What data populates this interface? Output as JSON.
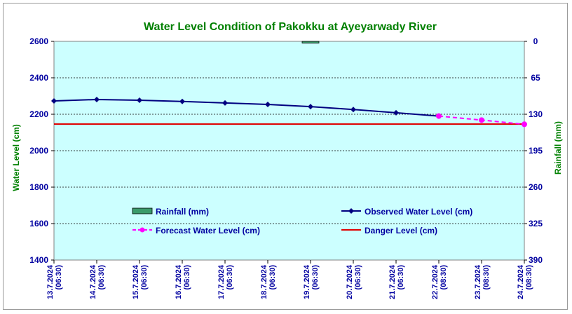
{
  "chart_data": {
    "type": "line",
    "title": "Water Level Condition of Pakokku at Ayeyarwady River",
    "ylabel": "Water Level (cm)",
    "y2label": "Rainfall (mm)",
    "ylim": [
      1400,
      2600
    ],
    "y2lim": [
      0,
      390
    ],
    "yticks": [
      "1400",
      "1600",
      "1800",
      "2000",
      "2200",
      "2400",
      "2600"
    ],
    "y2ticks": [
      "0",
      "65",
      "130",
      "195",
      "260",
      "325",
      "390"
    ],
    "categories": [
      [
        "13.7.2024",
        "(06:30)"
      ],
      [
        "14.7.2024",
        "(06:30)"
      ],
      [
        "15.7.2024",
        "(06:30)"
      ],
      [
        "16.7.2024",
        "(06:30)"
      ],
      [
        "17.7.2024",
        "(06:30)"
      ],
      [
        "18.7.2024",
        "(06:30)"
      ],
      [
        "19.7.2024",
        "(06:30)"
      ],
      [
        "20.7.2024",
        "(06:30)"
      ],
      [
        "21.7.2024",
        "(06:30)"
      ],
      [
        "22.7.2024",
        "(08:30)"
      ],
      [
        "23.7.2024",
        "(08:30)"
      ],
      [
        "24.7.2024",
        "(08:30)"
      ]
    ],
    "series": [
      {
        "name": "Rainfall (mm)",
        "type": "bar",
        "axis": "right",
        "color": "#3a9a6a",
        "values": [
          null,
          null,
          null,
          null,
          null,
          null,
          3,
          null,
          null,
          null,
          null,
          null
        ]
      },
      {
        "name": "Observed Water Level (cm)",
        "type": "line",
        "color": "#000080",
        "values": [
          2273,
          2281,
          2277,
          2270,
          2262,
          2254,
          2242,
          2226,
          2208,
          2190,
          null,
          null
        ]
      },
      {
        "name": "Forecast Water Level (cm)",
        "type": "line-dashed",
        "color": "#ff00ff",
        "values": [
          null,
          null,
          null,
          null,
          null,
          null,
          null,
          null,
          null,
          2190,
          2168,
          2145
        ]
      },
      {
        "name": "Danger Level (cm)",
        "type": "hline",
        "color": "#e00000",
        "value": 2146
      }
    ],
    "legend": "inside-bottom",
    "grid": true
  }
}
